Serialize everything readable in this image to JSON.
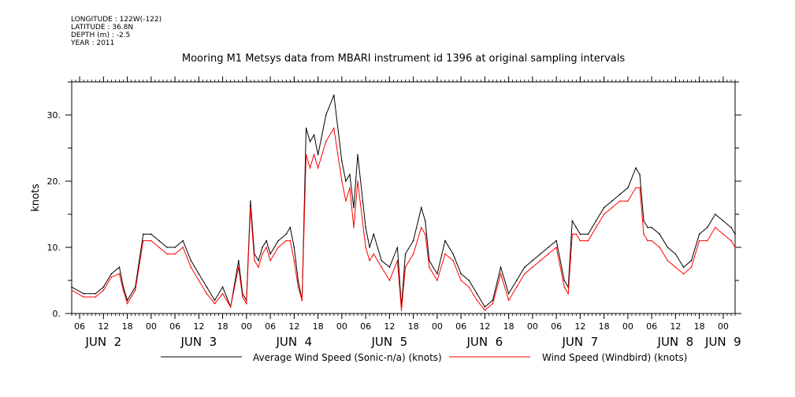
{
  "meta": {
    "longitude": "LONGITUDE : 122W(-122)",
    "latitude": "LATITUDE : 36.8N",
    "depth": "DEPTH (m) : -2.5",
    "year": "YEAR : 2011"
  },
  "colors": {
    "series1": "#000000",
    "series2": "#ff0000"
  },
  "chart_data": {
    "type": "line",
    "title": "Mooring M1 Metsys data from MBARI instrument id 1396 at original sampling intervals",
    "ylabel": "knots",
    "xlabel": "",
    "ylim": [
      0,
      35
    ],
    "yticks": [
      0,
      10,
      20,
      30
    ],
    "ytick_labels": [
      "0.",
      "10.",
      "20.",
      "30."
    ],
    "xlim": [
      "2011-06-02T04:00",
      "2011-06-09T03:00"
    ],
    "hour_ticks": [
      {
        "t": "2011-06-02T06:00",
        "label": "06"
      },
      {
        "t": "2011-06-02T12:00",
        "label": "12"
      },
      {
        "t": "2011-06-02T18:00",
        "label": "18"
      },
      {
        "t": "2011-06-03T00:00",
        "label": "00"
      },
      {
        "t": "2011-06-03T06:00",
        "label": "06"
      },
      {
        "t": "2011-06-03T12:00",
        "label": "12"
      },
      {
        "t": "2011-06-03T18:00",
        "label": "18"
      },
      {
        "t": "2011-06-04T00:00",
        "label": "00"
      },
      {
        "t": "2011-06-04T06:00",
        "label": "06"
      },
      {
        "t": "2011-06-04T12:00",
        "label": "12"
      },
      {
        "t": "2011-06-04T18:00",
        "label": "18"
      },
      {
        "t": "2011-06-05T00:00",
        "label": "00"
      },
      {
        "t": "2011-06-05T06:00",
        "label": "06"
      },
      {
        "t": "2011-06-05T12:00",
        "label": "12"
      },
      {
        "t": "2011-06-05T18:00",
        "label": "18"
      },
      {
        "t": "2011-06-06T00:00",
        "label": "00"
      },
      {
        "t": "2011-06-06T06:00",
        "label": "06"
      },
      {
        "t": "2011-06-06T12:00",
        "label": "12"
      },
      {
        "t": "2011-06-06T18:00",
        "label": "18"
      },
      {
        "t": "2011-06-07T00:00",
        "label": "00"
      },
      {
        "t": "2011-06-07T06:00",
        "label": "06"
      },
      {
        "t": "2011-06-07T12:00",
        "label": "12"
      },
      {
        "t": "2011-06-07T18:00",
        "label": "18"
      },
      {
        "t": "2011-06-08T00:00",
        "label": "00"
      },
      {
        "t": "2011-06-08T06:00",
        "label": "06"
      },
      {
        "t": "2011-06-08T12:00",
        "label": "12"
      },
      {
        "t": "2011-06-08T18:00",
        "label": "18"
      },
      {
        "t": "2011-06-09T00:00",
        "label": "00"
      }
    ],
    "date_labels": [
      {
        "t": "2011-06-02T12:00",
        "label": "JUN  2"
      },
      {
        "t": "2011-06-03T12:00",
        "label": "JUN  3"
      },
      {
        "t": "2011-06-04T12:00",
        "label": "JUN  4"
      },
      {
        "t": "2011-06-05T12:00",
        "label": "JUN  5"
      },
      {
        "t": "2011-06-06T12:00",
        "label": "JUN  6"
      },
      {
        "t": "2011-06-07T12:00",
        "label": "JUN  7"
      },
      {
        "t": "2011-06-08T12:00",
        "label": "JUN  8"
      },
      {
        "t": "2011-06-09T00:00",
        "label": "JUN  9"
      }
    ],
    "series": [
      {
        "name": "Average Wind Speed (Sonic-n/a) (knots)",
        "color": "#000000",
        "x": [
          "2011-06-02T04:00",
          "2011-06-02T07:00",
          "2011-06-02T10:00",
          "2011-06-02T12:00",
          "2011-06-02T14:00",
          "2011-06-02T16:00",
          "2011-06-02T17:00",
          "2011-06-02T18:00",
          "2011-06-02T20:00",
          "2011-06-02T22:00",
          "2011-06-03T00:00",
          "2011-06-03T02:00",
          "2011-06-03T04:00",
          "2011-06-03T06:00",
          "2011-06-03T08:00",
          "2011-06-03T10:00",
          "2011-06-03T12:00",
          "2011-06-03T14:00",
          "2011-06-03T16:00",
          "2011-06-03T18:00",
          "2011-06-03T20:00",
          "2011-06-03T22:00",
          "2011-06-03T23:00",
          "2011-06-04T00:00",
          "2011-06-04T01:00",
          "2011-06-04T02:00",
          "2011-06-04T03:00",
          "2011-06-04T04:00",
          "2011-06-04T05:00",
          "2011-06-04T06:00",
          "2011-06-04T08:00",
          "2011-06-04T10:00",
          "2011-06-04T11:00",
          "2011-06-04T12:00",
          "2011-06-04T13:00",
          "2011-06-04T14:00",
          "2011-06-04T15:00",
          "2011-06-04T16:00",
          "2011-06-04T17:00",
          "2011-06-04T18:00",
          "2011-06-04T20:00",
          "2011-06-04T22:00",
          "2011-06-05T00:00",
          "2011-06-05T01:00",
          "2011-06-05T02:00",
          "2011-06-05T03:00",
          "2011-06-05T04:00",
          "2011-06-05T06:00",
          "2011-06-05T07:00",
          "2011-06-05T08:00",
          "2011-06-05T10:00",
          "2011-06-05T12:00",
          "2011-06-05T14:00",
          "2011-06-05T15:00",
          "2011-06-05T16:00",
          "2011-06-05T18:00",
          "2011-06-05T20:00",
          "2011-06-05T21:00",
          "2011-06-05T22:00",
          "2011-06-06T00:00",
          "2011-06-06T02:00",
          "2011-06-06T04:00",
          "2011-06-06T06:00",
          "2011-06-06T08:00",
          "2011-06-06T10:00",
          "2011-06-06T12:00",
          "2011-06-06T14:00",
          "2011-06-06T16:00",
          "2011-06-06T18:00",
          "2011-06-06T20:00",
          "2011-06-06T22:00",
          "2011-06-07T00:00",
          "2011-06-07T02:00",
          "2011-06-07T04:00",
          "2011-06-07T06:00",
          "2011-06-07T08:00",
          "2011-06-07T09:00",
          "2011-06-07T10:00",
          "2011-06-07T11:00",
          "2011-06-07T12:00",
          "2011-06-07T14:00",
          "2011-06-07T16:00",
          "2011-06-07T18:00",
          "2011-06-07T20:00",
          "2011-06-07T22:00",
          "2011-06-08T00:00",
          "2011-06-08T02:00",
          "2011-06-08T03:00",
          "2011-06-08T04:00",
          "2011-06-08T05:00",
          "2011-06-08T06:00",
          "2011-06-08T08:00",
          "2011-06-08T10:00",
          "2011-06-08T12:00",
          "2011-06-08T14:00",
          "2011-06-08T16:00",
          "2011-06-08T18:00",
          "2011-06-08T20:00",
          "2011-06-08T22:00",
          "2011-06-09T00:00",
          "2011-06-09T02:00",
          "2011-06-09T03:00"
        ],
        "values": [
          4,
          3,
          3,
          4,
          6,
          7,
          4,
          2,
          4,
          12,
          12,
          11,
          10,
          10,
          11,
          8,
          6,
          4,
          2,
          4,
          1,
          8,
          3,
          2,
          17,
          9,
          8,
          10,
          11,
          9,
          11,
          12,
          13,
          10,
          5,
          2,
          28,
          26,
          27,
          24,
          30,
          33,
          23,
          20,
          21,
          16,
          24,
          13,
          10,
          12,
          8,
          7,
          10,
          1,
          9,
          11,
          16,
          14,
          8,
          6,
          11,
          9,
          6,
          5,
          3,
          1,
          2,
          7,
          3,
          5,
          7,
          8,
          9,
          10,
          11,
          5,
          4,
          14,
          13,
          12,
          12,
          14,
          16,
          17,
          18,
          19,
          22,
          21,
          14,
          13,
          13,
          12,
          10,
          9,
          7,
          8,
          12,
          13,
          15,
          14,
          13,
          12
        ]
      },
      {
        "name": "Wind Speed (Windbird) (knots)",
        "color": "#ff0000",
        "x": [
          "2011-06-02T04:00",
          "2011-06-02T07:00",
          "2011-06-02T10:00",
          "2011-06-02T12:00",
          "2011-06-02T14:00",
          "2011-06-02T16:00",
          "2011-06-02T17:00",
          "2011-06-02T18:00",
          "2011-06-02T20:00",
          "2011-06-02T22:00",
          "2011-06-03T00:00",
          "2011-06-03T02:00",
          "2011-06-03T04:00",
          "2011-06-03T06:00",
          "2011-06-03T08:00",
          "2011-06-03T10:00",
          "2011-06-03T12:00",
          "2011-06-03T14:00",
          "2011-06-03T16:00",
          "2011-06-03T18:00",
          "2011-06-03T20:00",
          "2011-06-03T22:00",
          "2011-06-03T23:00",
          "2011-06-04T00:00",
          "2011-06-04T01:00",
          "2011-06-04T02:00",
          "2011-06-04T03:00",
          "2011-06-04T04:00",
          "2011-06-04T05:00",
          "2011-06-04T06:00",
          "2011-06-04T08:00",
          "2011-06-04T10:00",
          "2011-06-04T11:00",
          "2011-06-04T12:00",
          "2011-06-04T13:00",
          "2011-06-04T14:00",
          "2011-06-04T15:00",
          "2011-06-04T16:00",
          "2011-06-04T17:00",
          "2011-06-04T18:00",
          "2011-06-04T20:00",
          "2011-06-04T22:00",
          "2011-06-05T00:00",
          "2011-06-05T01:00",
          "2011-06-05T02:00",
          "2011-06-05T03:00",
          "2011-06-05T04:00",
          "2011-06-05T06:00",
          "2011-06-05T07:00",
          "2011-06-05T08:00",
          "2011-06-05T10:00",
          "2011-06-05T12:00",
          "2011-06-05T14:00",
          "2011-06-05T15:00",
          "2011-06-05T16:00",
          "2011-06-05T18:00",
          "2011-06-05T20:00",
          "2011-06-05T21:00",
          "2011-06-05T22:00",
          "2011-06-06T00:00",
          "2011-06-06T02:00",
          "2011-06-06T04:00",
          "2011-06-06T06:00",
          "2011-06-06T08:00",
          "2011-06-06T10:00",
          "2011-06-06T12:00",
          "2011-06-06T14:00",
          "2011-06-06T16:00",
          "2011-06-06T18:00",
          "2011-06-06T20:00",
          "2011-06-06T22:00",
          "2011-06-07T00:00",
          "2011-06-07T02:00",
          "2011-06-07T04:00",
          "2011-06-07T06:00",
          "2011-06-07T08:00",
          "2011-06-07T09:00",
          "2011-06-07T10:00",
          "2011-06-07T11:00",
          "2011-06-07T12:00",
          "2011-06-07T14:00",
          "2011-06-07T16:00",
          "2011-06-07T18:00",
          "2011-06-07T20:00",
          "2011-06-07T22:00",
          "2011-06-08T00:00",
          "2011-06-08T02:00",
          "2011-06-08T03:00",
          "2011-06-08T04:00",
          "2011-06-08T05:00",
          "2011-06-08T06:00",
          "2011-06-08T08:00",
          "2011-06-08T10:00",
          "2011-06-08T12:00",
          "2011-06-08T14:00",
          "2011-06-08T16:00",
          "2011-06-08T18:00",
          "2011-06-08T20:00",
          "2011-06-08T22:00",
          "2011-06-09T00:00",
          "2011-06-09T02:00",
          "2011-06-09T03:00"
        ],
        "values": [
          3.5,
          2.5,
          2.5,
          3.5,
          5.5,
          6,
          3.5,
          1.5,
          3.5,
          11,
          11,
          10,
          9,
          9,
          10,
          7,
          5,
          3,
          1.5,
          3,
          1,
          7,
          2.5,
          1.5,
          16,
          8,
          7,
          9,
          10,
          8,
          10,
          11,
          11,
          8,
          4,
          2,
          24,
          22,
          24,
          22,
          26,
          28,
          20,
          17,
          19,
          13,
          20,
          10,
          8,
          9,
          7,
          5,
          8,
          0.5,
          7,
          9,
          13,
          12,
          7,
          5,
          9,
          8,
          5,
          4,
          2,
          0.5,
          1.5,
          6,
          2,
          4,
          6,
          7,
          8,
          9,
          10,
          4,
          3,
          12,
          12,
          11,
          11,
          13,
          15,
          16,
          17,
          17,
          19,
          19,
          12,
          11,
          11,
          10,
          8,
          7,
          6,
          7,
          11,
          11,
          13,
          12,
          11,
          10
        ]
      }
    ]
  }
}
